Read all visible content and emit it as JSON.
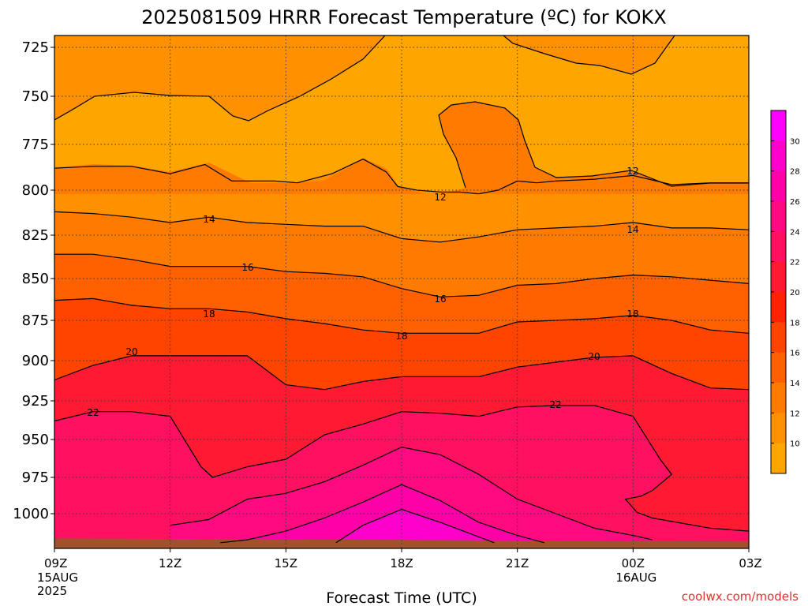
{
  "chart_data": {
    "type": "filled-contour",
    "title": "2025081509 HRRR Forecast Temperature (ºC) for KOKX",
    "xlabel": "Forecast Time (UTC)",
    "ylabel": "",
    "x_ticks": [
      {
        "label": "09Z",
        "sub": [
          "15AUG",
          "2025"
        ]
      },
      {
        "label": "12Z",
        "sub": []
      },
      {
        "label": "15Z",
        "sub": []
      },
      {
        "label": "18Z",
        "sub": []
      },
      {
        "label": "21Z",
        "sub": []
      },
      {
        "label": "00Z",
        "sub": [
          "16AUG"
        ]
      },
      {
        "label": "03Z",
        "sub": []
      }
    ],
    "y_ticks": [
      "725",
      "750",
      "775",
      "800",
      "825",
      "850",
      "875",
      "900",
      "925",
      "950",
      "975",
      "1000"
    ],
    "y_unit": "hPa",
    "x_range_hours": [
      9,
      27
    ],
    "y_range_hpa": [
      715,
      1022
    ],
    "grid": "dotted",
    "colorbar": {
      "labels": [
        "10",
        "12",
        "14",
        "16",
        "18",
        "20",
        "22",
        "24",
        "26",
        "28",
        "30"
      ],
      "colors": [
        "#ffa500",
        "#ff9000",
        "#ff7b00",
        "#ff6000",
        "#ff4400",
        "#ff2200",
        "#ff1a33",
        "#ff1060",
        "#ff0a80",
        "#ff00a8",
        "#ff00cc",
        "#ff00ff"
      ]
    },
    "contour_labels": [
      "12",
      "12",
      "14",
      "14",
      "16",
      "16",
      "18",
      "18",
      "18",
      "20",
      "20",
      "22",
      "22"
    ],
    "contours": [
      {
        "level": 12,
        "points": [
          [
            9,
            788
          ],
          [
            10,
            787
          ],
          [
            11,
            787
          ],
          [
            12,
            791
          ],
          [
            12.9,
            786
          ],
          [
            13.6,
            795
          ],
          [
            14.7,
            795
          ],
          [
            15.3,
            796
          ],
          [
            16.2,
            791
          ],
          [
            17,
            783
          ],
          [
            17.6,
            790
          ],
          [
            17.9,
            798
          ],
          [
            18.4,
            800
          ],
          [
            19,
            801
          ],
          [
            19.5,
            801
          ],
          [
            20,
            802
          ],
          [
            20.5,
            800
          ],
          [
            21,
            795
          ],
          [
            21.5,
            796
          ],
          [
            22,
            795
          ],
          [
            23,
            794
          ],
          [
            24,
            792
          ],
          [
            25,
            797
          ],
          [
            26,
            796
          ],
          [
            27,
            796
          ]
        ]
      },
      {
        "level": 14,
        "points": [
          [
            9,
            812
          ],
          [
            10,
            813
          ],
          [
            11,
            815
          ],
          [
            12,
            818
          ],
          [
            13,
            815
          ],
          [
            14,
            818
          ],
          [
            15,
            819
          ],
          [
            16,
            820
          ],
          [
            17,
            820
          ],
          [
            18,
            827
          ],
          [
            19,
            829
          ],
          [
            20,
            826
          ],
          [
            21,
            822
          ],
          [
            22,
            821
          ],
          [
            23,
            820
          ],
          [
            24,
            818
          ],
          [
            25,
            821
          ],
          [
            26,
            821
          ],
          [
            27,
            822
          ]
        ]
      },
      {
        "level": 16,
        "points": [
          [
            9,
            836
          ],
          [
            10,
            836
          ],
          [
            11,
            839
          ],
          [
            12,
            843
          ],
          [
            13,
            843
          ],
          [
            14,
            843
          ],
          [
            15,
            846
          ],
          [
            16,
            847
          ],
          [
            17,
            849
          ],
          [
            18,
            856
          ],
          [
            19,
            861
          ],
          [
            20,
            860
          ],
          [
            21,
            854
          ],
          [
            22,
            853
          ],
          [
            23,
            850
          ],
          [
            24,
            848
          ],
          [
            25,
            849
          ],
          [
            26,
            851
          ],
          [
            27,
            853
          ]
        ]
      },
      {
        "level": 18,
        "points": [
          [
            9,
            863
          ],
          [
            10,
            862
          ],
          [
            11,
            866
          ],
          [
            12,
            868
          ],
          [
            13,
            868
          ],
          [
            14,
            870
          ],
          [
            15,
            874
          ],
          [
            16,
            877
          ],
          [
            17,
            881
          ],
          [
            18,
            883
          ],
          [
            19,
            883
          ],
          [
            20,
            883
          ],
          [
            21,
            876
          ],
          [
            22,
            875
          ],
          [
            23,
            874
          ],
          [
            24,
            872
          ],
          [
            25,
            875
          ],
          [
            26,
            881
          ],
          [
            27,
            883
          ]
        ]
      },
      {
        "level": 20,
        "points": [
          [
            9,
            912
          ],
          [
            10,
            903
          ],
          [
            11,
            897
          ],
          [
            12,
            897
          ],
          [
            13,
            897
          ],
          [
            14,
            897
          ],
          [
            15,
            915
          ],
          [
            16,
            918
          ],
          [
            17,
            913
          ],
          [
            18,
            910
          ],
          [
            19,
            910
          ],
          [
            20,
            910
          ],
          [
            21,
            904
          ],
          [
            22,
            901
          ],
          [
            23,
            898
          ],
          [
            24,
            897
          ],
          [
            25,
            908
          ],
          [
            26,
            917
          ],
          [
            27,
            918
          ]
        ]
      },
      {
        "level": 22,
        "points": [
          [
            9,
            938
          ],
          [
            10,
            932
          ],
          [
            11,
            932
          ],
          [
            12,
            935
          ],
          [
            12.8,
            968
          ],
          [
            13.1,
            975
          ],
          [
            14,
            968
          ],
          [
            15,
            963
          ],
          [
            16,
            947
          ],
          [
            17,
            940
          ],
          [
            18,
            932
          ],
          [
            19,
            933
          ],
          [
            20,
            935
          ],
          [
            21,
            929
          ],
          [
            22,
            928
          ],
          [
            23,
            928
          ],
          [
            24,
            935
          ],
          [
            24.7,
            963
          ],
          [
            25,
            973
          ],
          [
            24.5,
            984
          ],
          [
            24.2,
            988
          ],
          [
            23.8,
            990
          ],
          [
            24.1,
            999
          ],
          [
            24.5,
            1003
          ],
          [
            26,
            1010
          ],
          [
            27,
            1012
          ]
        ]
      },
      {
        "level": 24,
        "points": [
          [
            12,
            1008
          ],
          [
            13,
            1004
          ],
          [
            14,
            990
          ],
          [
            15,
            986
          ],
          [
            16,
            978
          ],
          [
            17,
            967
          ],
          [
            18,
            955
          ],
          [
            19,
            960
          ],
          [
            20,
            973
          ],
          [
            21,
            990
          ],
          [
            22,
            1000
          ],
          [
            23,
            1010
          ],
          [
            24,
            1015
          ],
          [
            24.5,
            1018
          ]
        ]
      },
      {
        "level": 26,
        "points": [
          [
            13.3,
            1020
          ],
          [
            14,
            1018
          ],
          [
            15,
            1012
          ],
          [
            16,
            1003
          ],
          [
            17,
            992
          ],
          [
            18,
            980
          ],
          [
            19,
            991
          ],
          [
            20,
            1006
          ],
          [
            21,
            1015
          ],
          [
            21.7,
            1020
          ]
        ]
      },
      {
        "level": 28,
        "points": [
          [
            16.3,
            1020
          ],
          [
            17,
            1008
          ],
          [
            18,
            997
          ],
          [
            19,
            1006
          ],
          [
            20,
            1016
          ],
          [
            20.4,
            1020
          ]
        ]
      }
    ],
    "ground_top_hpa": 1017
  },
  "footer": {
    "credit": "coolwx.com/models"
  }
}
